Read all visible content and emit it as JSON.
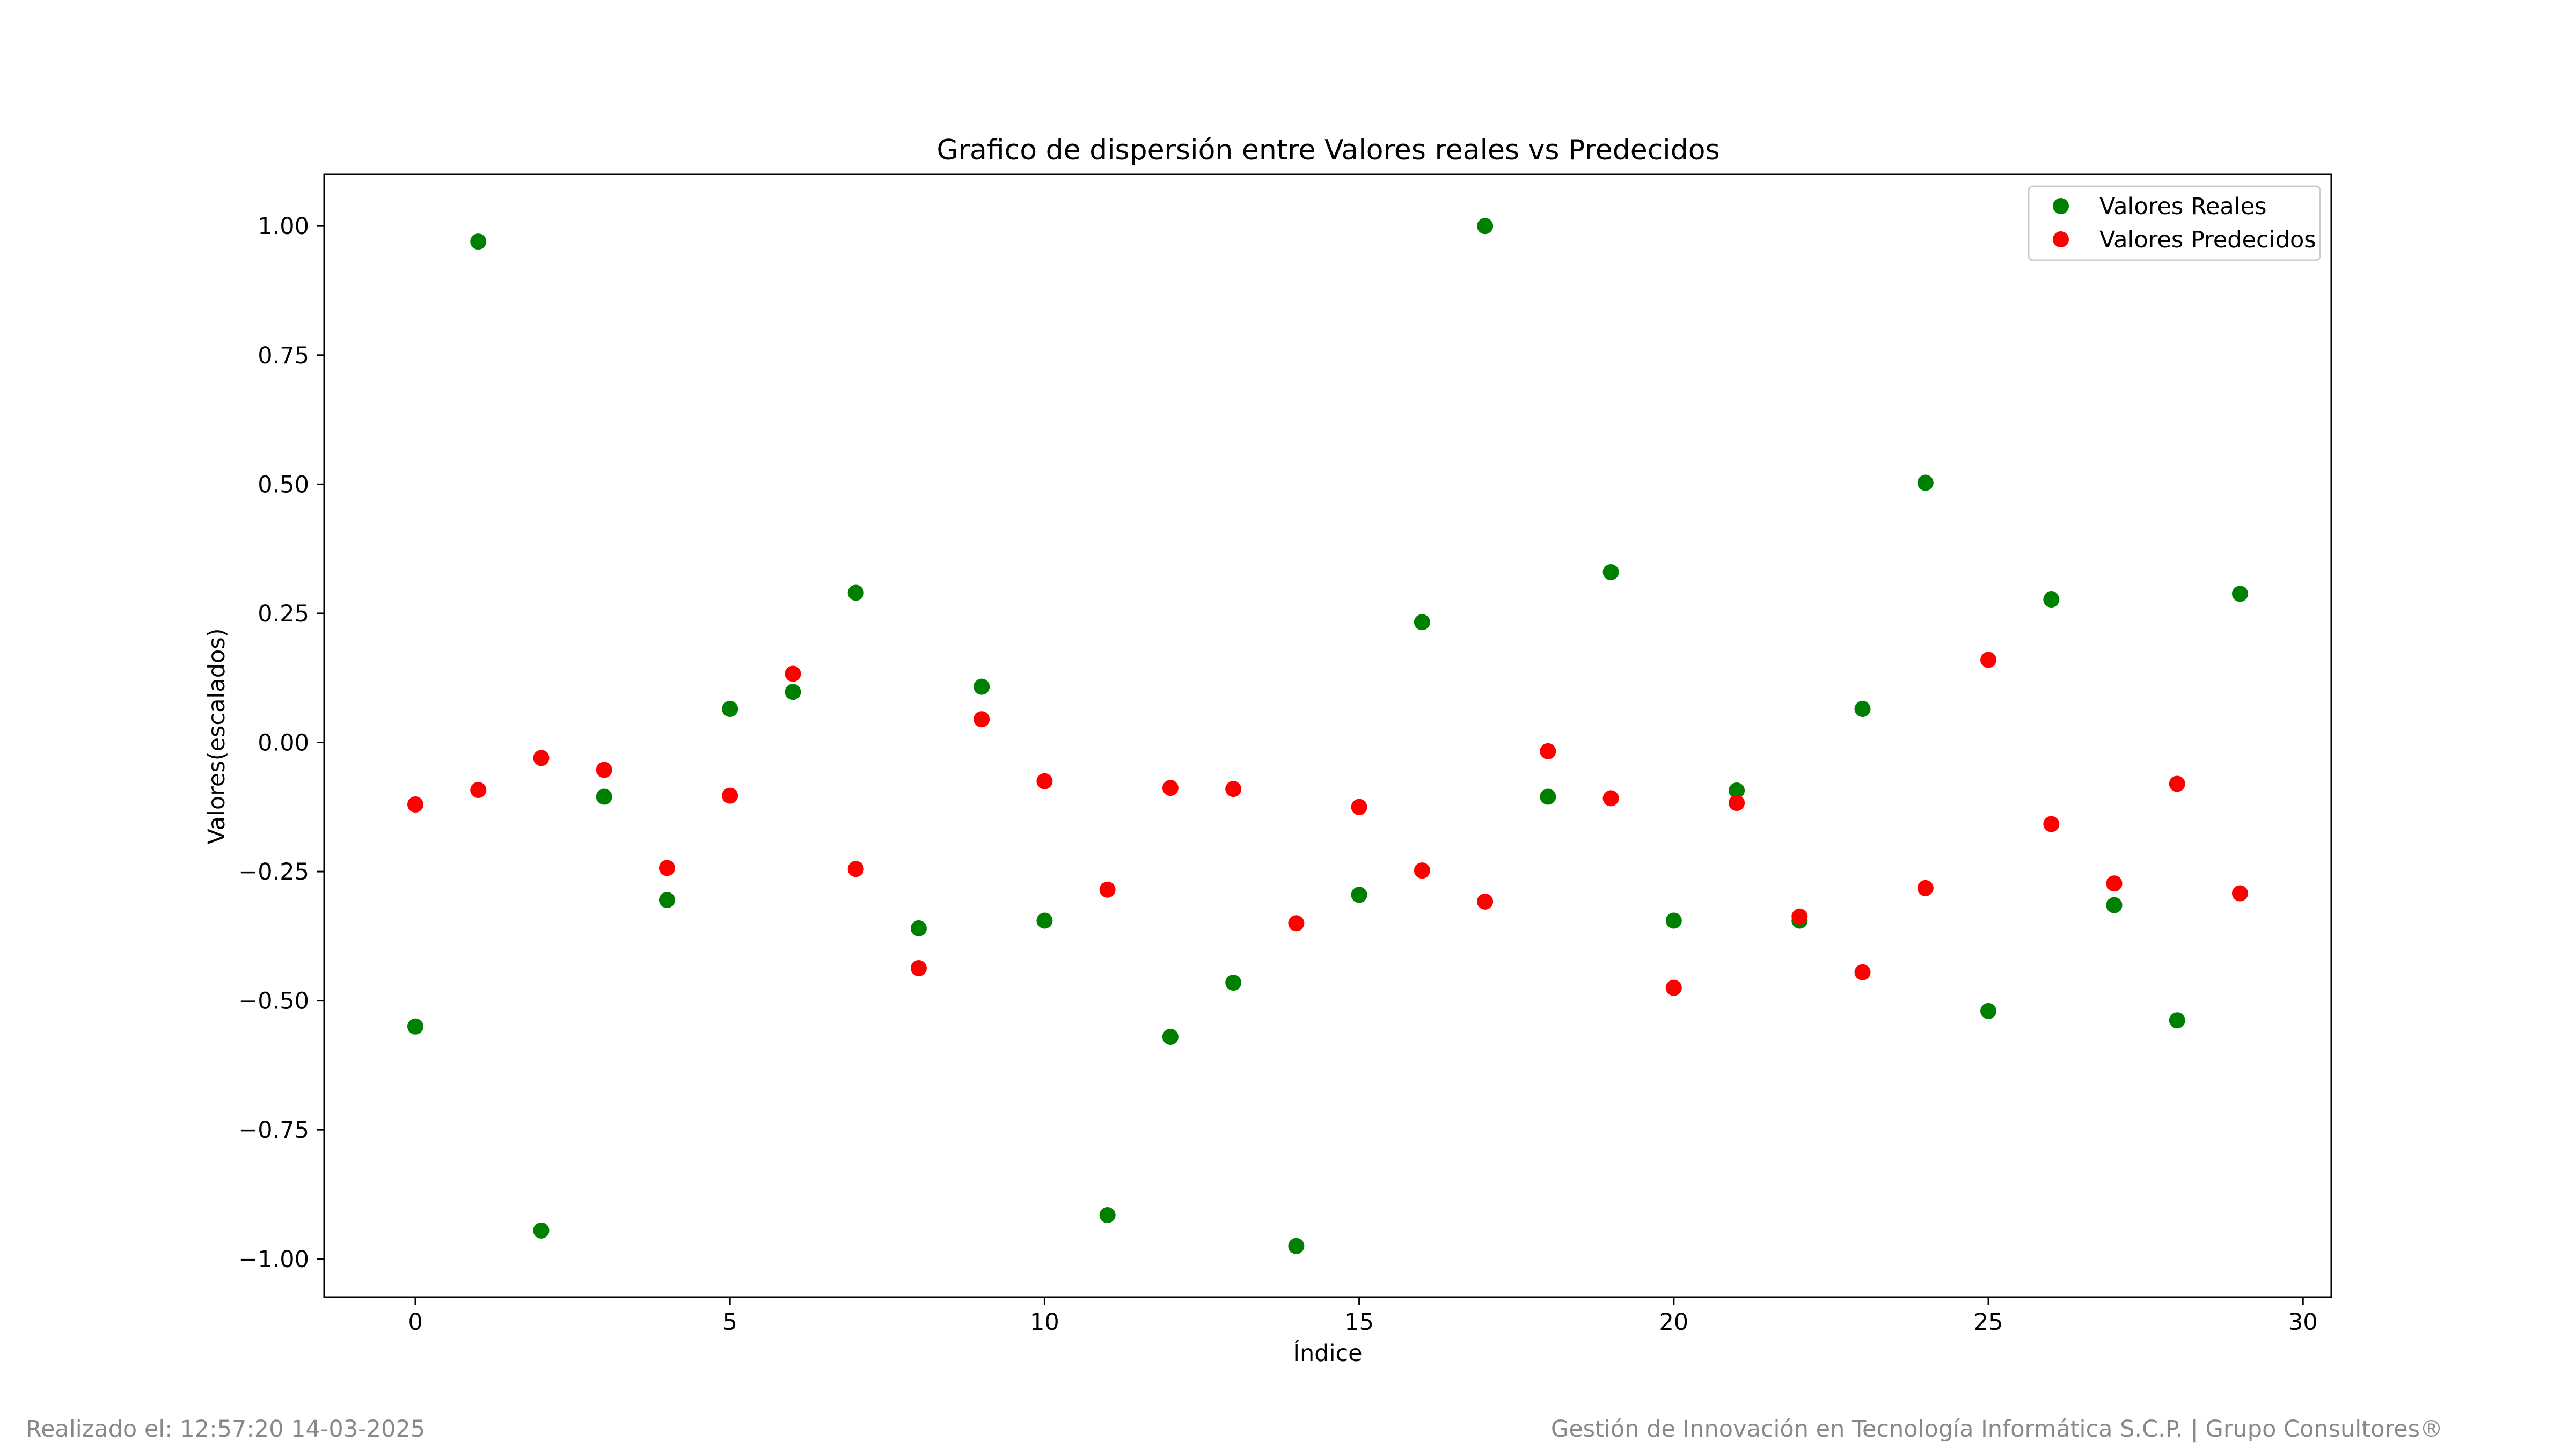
{
  "chart_data": {
    "type": "scatter",
    "title": "Grafico de dispersión entre Valores reales vs Predecidos",
    "xlabel": "Índice",
    "ylabel": "Valores(escalados)",
    "xlim": [
      -1.45,
      30.45
    ],
    "ylim": [
      -1.074,
      1.1
    ],
    "xticks": [
      0,
      5,
      10,
      15,
      20,
      25,
      30
    ],
    "xtick_labels": [
      "0",
      "5",
      "10",
      "15",
      "20",
      "25",
      "30"
    ],
    "yticks": [
      1.0,
      0.75,
      0.5,
      0.25,
      0.0,
      -0.25,
      -0.5,
      -0.75,
      -1.0
    ],
    "ytick_labels": [
      "1.00",
      "0.75",
      "0.50",
      "0.25",
      "0.00",
      "−0.25",
      "−0.50",
      "−0.75",
      "−1.00"
    ],
    "grid": false,
    "legend_position": "top-right",
    "x": [
      0,
      1,
      2,
      3,
      4,
      5,
      6,
      7,
      8,
      9,
      10,
      11,
      12,
      13,
      14,
      15,
      16,
      17,
      18,
      19,
      20,
      21,
      22,
      23,
      24,
      25,
      26,
      27,
      28,
      29
    ],
    "series": [
      {
        "name": "Valores Reales",
        "color": "#008000",
        "values": [
          -0.55,
          0.97,
          -0.945,
          -0.105,
          -0.305,
          0.065,
          0.098,
          0.29,
          -0.36,
          0.108,
          -0.345,
          -0.915,
          -0.57,
          -0.465,
          -0.975,
          -0.295,
          0.233,
          1.0,
          -0.105,
          0.33,
          -0.345,
          -0.093,
          -0.345,
          0.065,
          0.503,
          -0.52,
          0.277,
          -0.315,
          -0.538,
          0.288
        ]
      },
      {
        "name": "Valores Predecidos",
        "color": "#ff0000",
        "values": [
          -0.12,
          -0.092,
          -0.03,
          -0.053,
          -0.243,
          -0.103,
          0.133,
          -0.245,
          -0.437,
          0.045,
          -0.075,
          -0.285,
          -0.088,
          -0.09,
          -0.35,
          -0.125,
          -0.248,
          -0.308,
          -0.017,
          -0.108,
          -0.475,
          -0.117,
          -0.337,
          -0.445,
          -0.282,
          0.16,
          -0.158,
          -0.273,
          -0.08,
          -0.292
        ]
      }
    ]
  },
  "footer": {
    "left": "Realizado el: 12:57:20 14-03-2025",
    "right": "Gestión de Innovación en Tecnología Informática S.C.P. | Grupo Consultores®"
  }
}
